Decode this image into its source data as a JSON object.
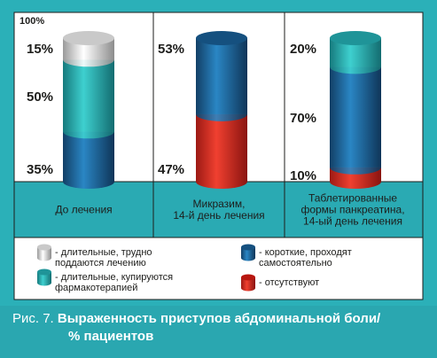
{
  "chart_data": {
    "type": "bar",
    "stacked": true,
    "y_max_label": "100%",
    "ylim": [
      0,
      100
    ],
    "categories": [
      [
        "До лечения"
      ],
      [
        "Микразим,",
        "14-й день лечения"
      ],
      [
        "Таблетированные",
        "формы панкреатина,",
        "14-ый день лечения"
      ]
    ],
    "series": [
      {
        "name": "отсутствуют",
        "color": "#e2231a",
        "values": [
          0,
          47,
          10
        ]
      },
      {
        "name": "короткие, проходят самостоятельно",
        "color": "#1f6fae",
        "values": [
          35,
          53,
          70
        ]
      },
      {
        "name": "длительные, купируются фармакотерапией",
        "color": "#2bb7b9",
        "values": [
          50,
          0,
          20
        ]
      },
      {
        "name": "длительные, трудно поддаются лечению",
        "color": "#e6e6e6",
        "values": [
          15,
          0,
          0
        ]
      }
    ],
    "value_labels": [
      [
        "15%",
        "50%",
        "35%"
      ],
      [
        "53%",
        "47%"
      ],
      [
        "20%",
        "70%",
        "10%"
      ]
    ],
    "legend": [
      {
        "lines": [
          "- длительные, трудно",
          "поддаются лечению"
        ],
        "color": "#e6e6e6"
      },
      {
        "lines": [
          "- короткие, проходят",
          "самостоятельно"
        ],
        "color": "#1f6fae"
      },
      {
        "lines": [
          "- длительные, купируются",
          "фармакотерапией"
        ],
        "color": "#2bb7b9"
      },
      {
        "lines": [
          "- отсутствуют"
        ],
        "color": "#e2231a"
      }
    ]
  },
  "caption": {
    "prefix": "Рис. 7.",
    "text": "Выраженность приступов абдоминальной боли/",
    "line2": "% пациентов"
  }
}
